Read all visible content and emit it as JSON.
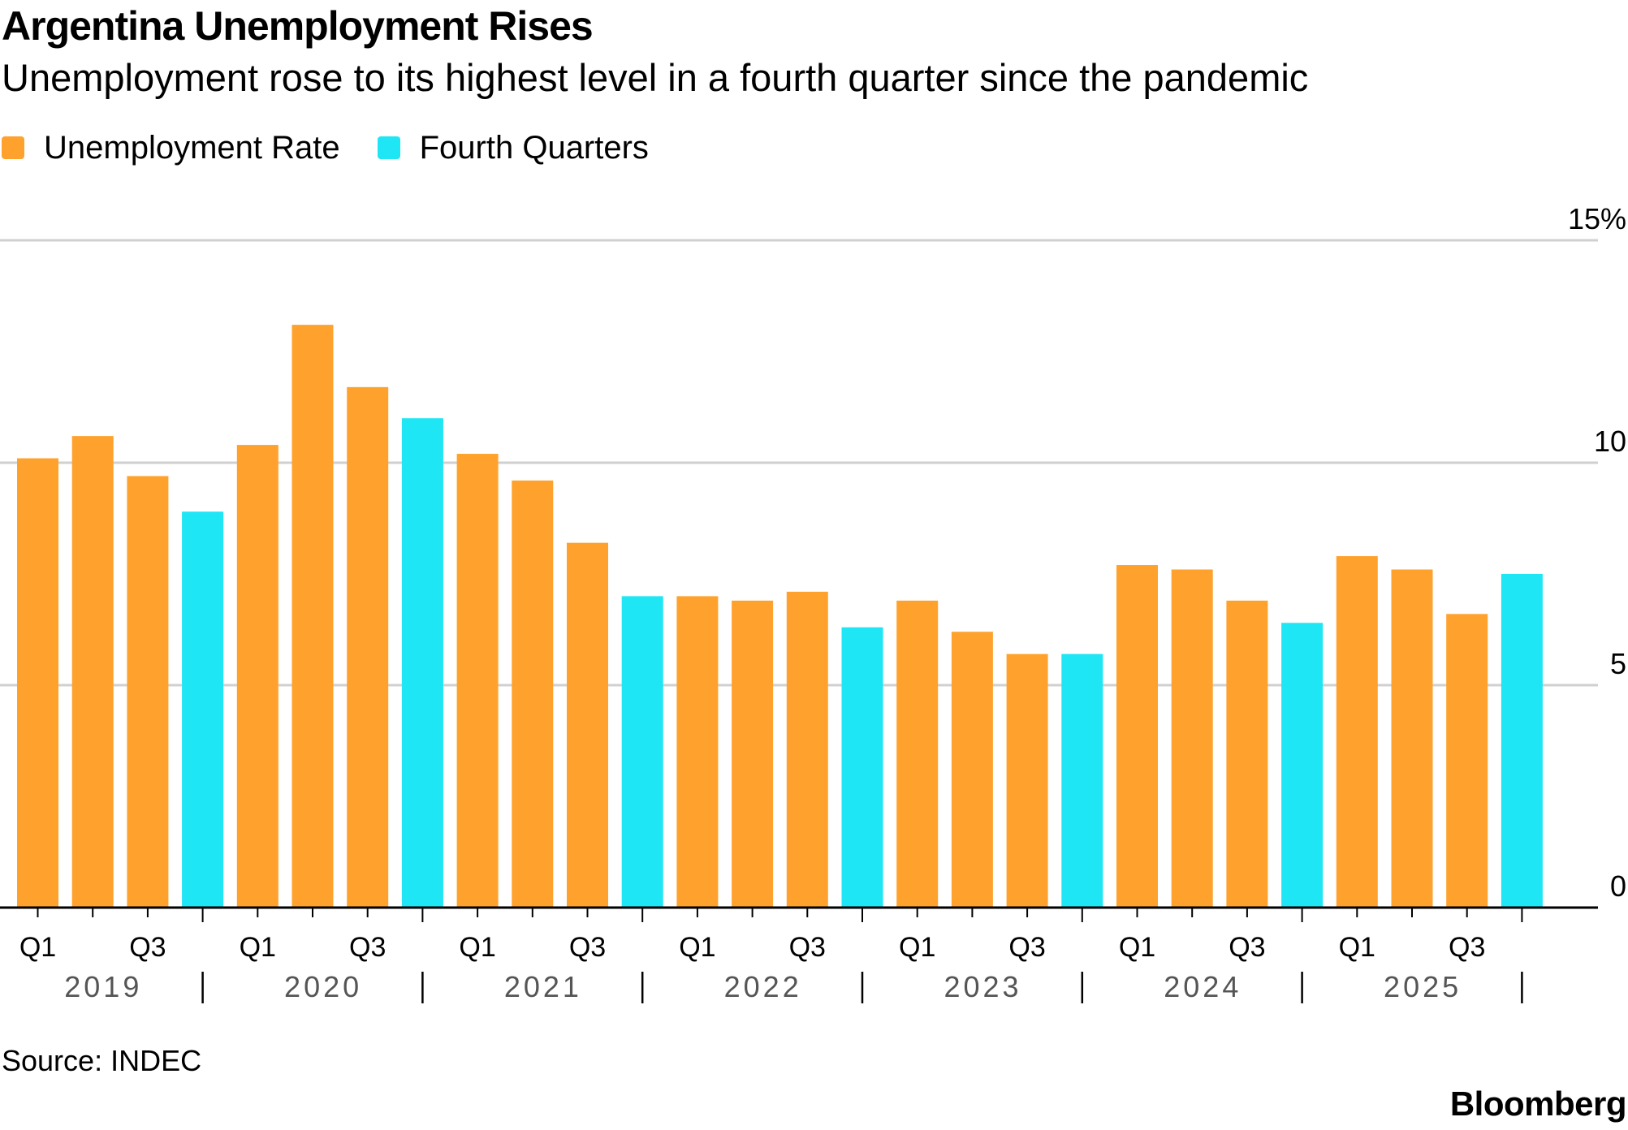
{
  "title": "Argentina Unemployment Rises",
  "subtitle": "Unemployment rose to its highest level in a fourth quarter since the pandemic",
  "legend": [
    {
      "label": "Unemployment Rate",
      "color": "#FFA22D"
    },
    {
      "label": "Fourth Quarters",
      "color": "#1EE6F5"
    }
  ],
  "source": "Source: INDEC",
  "logo": "Bloomberg",
  "chart_data": {
    "type": "bar",
    "unit": "%",
    "ylim": [
      0,
      15
    ],
    "yticks": [
      0,
      5,
      10,
      15
    ],
    "ytick_labels": [
      "0",
      "5",
      "10",
      "15%"
    ],
    "grid": true,
    "x_tick_labels": [
      "Q1",
      "Q3"
    ],
    "years": [
      "2019",
      "2020",
      "2021",
      "2022",
      "2023",
      "2024",
      "2025"
    ],
    "categories": [
      "2019 Q1",
      "2019 Q2",
      "2019 Q3",
      "2019 Q4",
      "2020 Q1",
      "2020 Q2",
      "2020 Q3",
      "2020 Q4",
      "2021 Q1",
      "2021 Q2",
      "2021 Q3",
      "2021 Q4",
      "2022 Q1",
      "2022 Q2",
      "2022 Q3",
      "2022 Q4",
      "2023 Q1",
      "2023 Q2",
      "2023 Q3",
      "2023 Q4",
      "2024 Q1",
      "2024 Q2",
      "2024 Q3",
      "2024 Q4",
      "2025 Q1",
      "2025 Q2",
      "2025 Q3",
      "2025 Q4"
    ],
    "series": [
      {
        "name": "Unemployment Rate",
        "color": "#FFA22D",
        "values": [
          10.1,
          10.6,
          9.7,
          null,
          10.4,
          13.1,
          11.7,
          null,
          10.2,
          9.6,
          8.2,
          null,
          7.0,
          6.9,
          7.1,
          null,
          6.9,
          6.2,
          5.7,
          null,
          7.7,
          7.6,
          6.9,
          null,
          7.9,
          7.6,
          6.6,
          null
        ]
      },
      {
        "name": "Fourth Quarters",
        "color": "#1EE6F5",
        "values": [
          null,
          null,
          null,
          8.9,
          null,
          null,
          null,
          11.0,
          null,
          null,
          null,
          7.0,
          null,
          null,
          null,
          6.3,
          null,
          null,
          null,
          5.7,
          null,
          null,
          null,
          6.4,
          null,
          null,
          null,
          7.5
        ]
      }
    ]
  }
}
